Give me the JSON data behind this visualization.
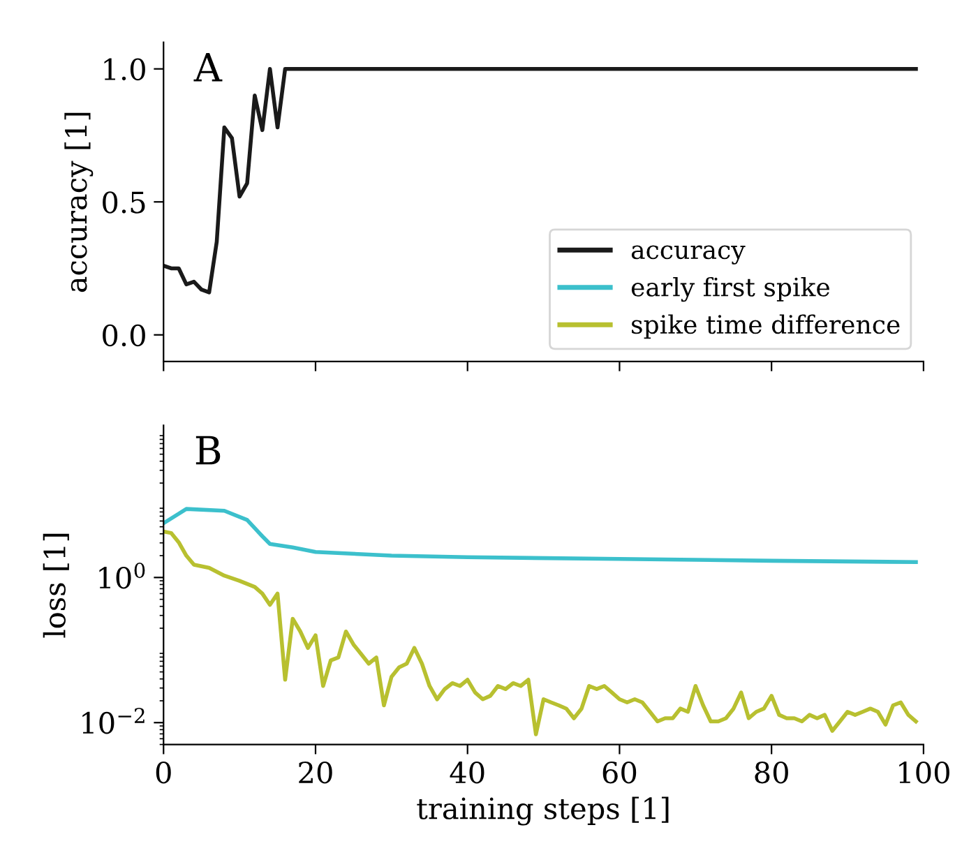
{
  "chart_data": [
    {
      "type": "line",
      "ylabel": "accuracy [1]",
      "annotations": [
        "A"
      ],
      "xlim": [
        0,
        100
      ],
      "xticks": [
        {
          "value": 0,
          "label": null
        },
        {
          "value": 20,
          "label": null
        },
        {
          "value": 40,
          "label": null
        },
        {
          "value": 60,
          "label": null
        },
        {
          "value": 80,
          "label": null
        },
        {
          "value": 100,
          "label": null
        }
      ],
      "ylim": [
        -0.1,
        1.1
      ],
      "yticks": [
        {
          "value": 0,
          "label": "0.0"
        },
        {
          "value": 0.5,
          "label": "0.5"
        },
        {
          "value": 1,
          "label": "1.0"
        }
      ],
      "tick_labels": "y",
      "legend": "bottom right",
      "grid": false,
      "series": [
        {
          "name": "accuracy",
          "color": "#1a1a1a",
          "x": [
            0,
            1,
            2,
            3,
            4,
            5,
            6,
            7,
            8,
            9,
            10,
            11,
            12,
            13,
            14,
            15,
            16,
            99
          ],
          "values": [
            0.26,
            0.25,
            0.25,
            0.19,
            0.2,
            0.17,
            0.16,
            0.35,
            0.78,
            0.74,
            0.52,
            0.57,
            0.9,
            0.77,
            1.0,
            0.78,
            1.0,
            1.0
          ]
        }
      ]
    },
    {
      "type": "line",
      "xlabel": "training steps [1]",
      "ylabel": "loss [1]",
      "annotations": [
        "B"
      ],
      "log": "y",
      "xlim": [
        0,
        100
      ],
      "xticks": [
        0,
        20,
        40,
        60,
        80,
        100
      ],
      "ylim": [
        0.005,
        125
      ],
      "yticks": [
        {
          "value": 0.01,
          "label": "10$^{−2}$"
        },
        {
          "value": 1,
          "label": "10$^{0}$"
        }
      ],
      "legend": "top",
      "grid": false,
      "series": [
        {
          "name": "early first spike",
          "color": "#3cc0cc",
          "x": [
            0,
            3,
            8,
            11,
            13,
            14,
            17,
            20,
            30,
            40,
            60,
            80,
            99
          ],
          "values": [
            5.6,
            8.8,
            8.3,
            6.2,
            3.7,
            2.9,
            2.6,
            2.25,
            2.0,
            1.9,
            1.8,
            1.7,
            1.63
          ]
        },
        {
          "name": "spike time difference",
          "color": "#b8c030",
          "x": [
            0,
            1,
            2,
            3,
            4,
            6,
            8,
            10,
            12,
            13,
            14,
            15,
            16,
            17,
            18,
            19,
            20,
            21,
            22,
            23,
            24,
            25,
            26,
            27,
            28,
            29,
            30,
            31,
            32,
            33,
            34,
            35,
            36,
            37,
            38,
            39,
            40,
            41,
            42,
            43,
            44,
            45,
            46,
            47,
            48,
            49,
            50,
            51,
            52,
            53,
            54,
            55,
            56,
            57,
            58,
            59,
            60,
            61,
            62,
            63,
            64,
            65,
            66,
            67,
            68,
            69,
            70,
            71,
            72,
            73,
            74,
            75,
            76,
            77,
            78,
            79,
            80,
            81,
            82,
            83,
            84,
            85,
            86,
            87,
            88,
            89,
            90,
            91,
            92,
            93,
            94,
            95,
            96,
            97,
            98,
            99
          ],
          "values": [
            4.3,
            4.1,
            3.05,
            2.0,
            1.5,
            1.36,
            1.06,
            0.9,
            0.74,
            0.6,
            0.42,
            0.6,
            0.039,
            0.27,
            0.18,
            0.107,
            0.16,
            0.032,
            0.072,
            0.079,
            0.18,
            0.119,
            0.088,
            0.065,
            0.079,
            0.0173,
            0.043,
            0.058,
            0.065,
            0.107,
            0.065,
            0.032,
            0.021,
            0.029,
            0.035,
            0.032,
            0.039,
            0.026,
            0.021,
            0.0234,
            0.032,
            0.029,
            0.035,
            0.032,
            0.039,
            0.0069,
            0.021,
            0.019,
            0.0173,
            0.0156,
            0.0115,
            0.0156,
            0.032,
            0.029,
            0.032,
            0.026,
            0.021,
            0.019,
            0.021,
            0.019,
            0.0141,
            0.0104,
            0.0115,
            0.0115,
            0.0156,
            0.0141,
            0.032,
            0.0173,
            0.0104,
            0.0104,
            0.0115,
            0.0156,
            0.026,
            0.0115,
            0.0141,
            0.0156,
            0.0234,
            0.0128,
            0.0115,
            0.0115,
            0.0104,
            0.0128,
            0.0115,
            0.0128,
            0.0077,
            0.0104,
            0.0141,
            0.0128,
            0.0141,
            0.0156,
            0.0141,
            0.0094,
            0.0173,
            0.019,
            0.0128,
            0.0104
          ]
        }
      ]
    }
  ]
}
